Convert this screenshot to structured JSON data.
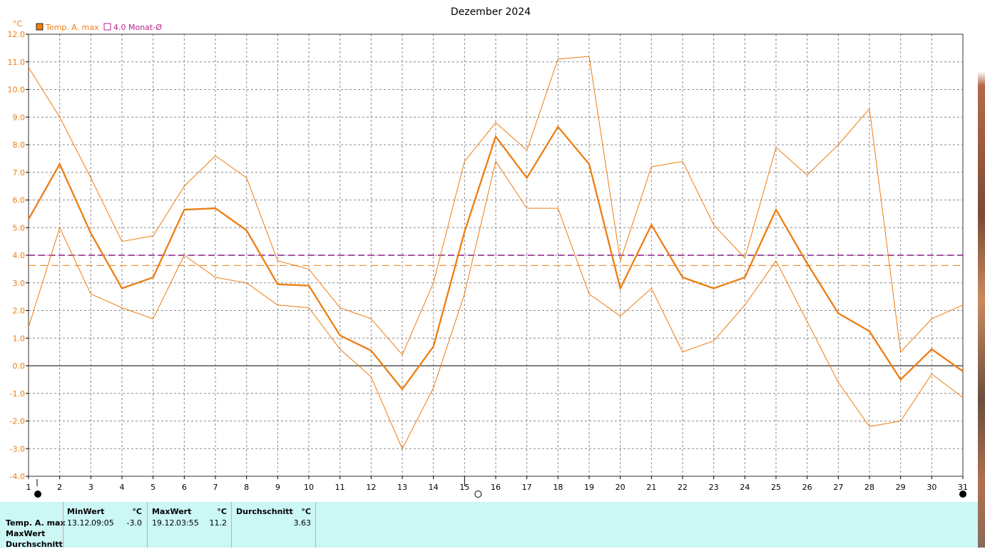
{
  "chart_data": {
    "type": "line",
    "title": "Dezember 2024",
    "yunit": "°C",
    "ylim": [
      -4.0,
      12.0
    ],
    "yticks": [
      "12.0",
      "11.0",
      "10.0",
      "9.0",
      "8.0",
      "7.0",
      "6.0",
      "5.0",
      "4.0",
      "3.0",
      "2.0",
      "1.0",
      "0.0",
      "-1.0",
      "-2.0",
      "-3.0",
      "-4.0"
    ],
    "x": [
      1,
      2,
      3,
      4,
      5,
      6,
      7,
      8,
      9,
      10,
      11,
      12,
      13,
      14,
      15,
      16,
      17,
      18,
      19,
      20,
      21,
      22,
      23,
      24,
      25,
      26,
      27,
      28,
      29,
      30,
      31
    ],
    "xlim": [
      1,
      31
    ],
    "grid": true,
    "legend": [
      "Temp. A. max",
      "4.0 Monat-Ø"
    ],
    "series": [
      {
        "name": "Temp. A. max",
        "color": "#ee7d12",
        "values": [
          5.3,
          7.3,
          4.8,
          2.8,
          3.2,
          5.65,
          5.7,
          4.9,
          2.95,
          2.9,
          1.1,
          0.55,
          -0.85,
          0.7,
          4.85,
          8.3,
          6.8,
          8.65,
          7.3,
          2.8,
          5.1,
          3.2,
          2.8,
          3.2,
          5.65,
          3.7,
          1.9,
          1.25,
          -0.5,
          0.6,
          -0.2
        ]
      },
      {
        "color": "#ee7d12",
        "values": [
          10.8,
          9.0,
          6.8,
          4.5,
          4.7,
          6.5,
          7.6,
          6.8,
          3.8,
          3.5,
          2.1,
          1.7,
          0.4,
          3.0,
          7.4,
          8.8,
          7.8,
          11.1,
          11.2,
          3.8,
          7.2,
          7.4,
          5.1,
          3.9,
          7.9,
          6.9,
          8.0,
          9.3,
          0.5,
          1.7,
          2.2
        ]
      },
      {
        "color": "#ee7d12",
        "values": [
          1.4,
          5.0,
          2.6,
          2.1,
          1.7,
          4.0,
          3.2,
          3.0,
          2.2,
          2.1,
          0.6,
          -0.4,
          -3.0,
          -0.8,
          2.6,
          7.4,
          5.7,
          5.7,
          2.6,
          1.8,
          2.8,
          0.5,
          0.9,
          2.2,
          3.8,
          1.6,
          -0.6,
          -2.2,
          -2.0,
          -0.3,
          -1.15
        ]
      }
    ],
    "reference_lines": [
      {
        "value": 4.0,
        "color": "#8a1a8a",
        "style": "dashed"
      },
      {
        "value": 3.63,
        "color": "#ee7d12",
        "style": "dashed"
      }
    ],
    "moon_markers": [
      {
        "day": 1,
        "phase": "new"
      },
      {
        "day": 15,
        "phase": "full"
      },
      {
        "day": 31,
        "phase": "new"
      }
    ]
  },
  "stats_table": {
    "row_labels": [
      "Temp. A. max",
      "MaxWert",
      "Durchschnitt"
    ],
    "min": {
      "header": "MinWert",
      "unit": "°C",
      "date": "13.12.",
      "time": "09:05",
      "value": "-3.0"
    },
    "max": {
      "header": "MaxWert",
      "unit": "°C",
      "date": "19.12.",
      "time": "03:55",
      "value": "11.2"
    },
    "avg": {
      "header": "Durchschnitt",
      "unit": "°C",
      "value": "3.63"
    }
  }
}
